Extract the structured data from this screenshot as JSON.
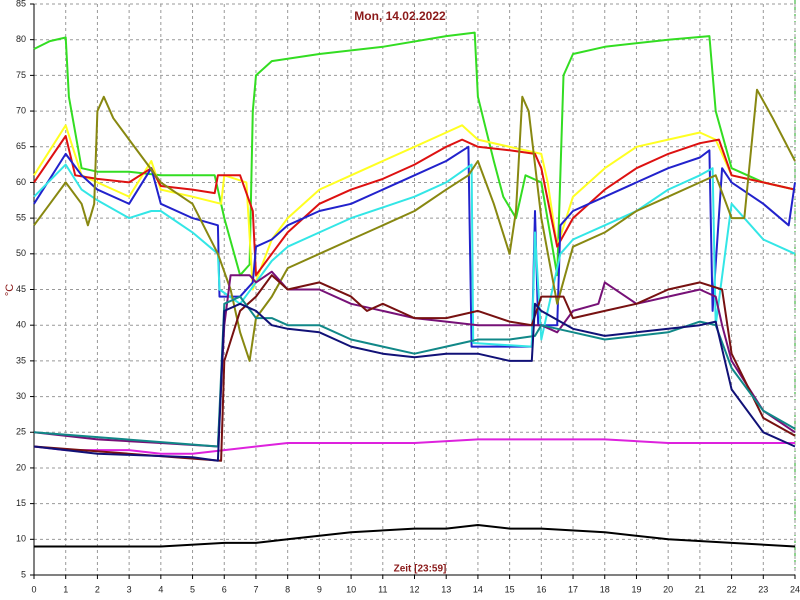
{
  "chart_data": {
    "type": "line",
    "title": "Mon, 14.02.2022",
    "ylabel": "°C",
    "xlabel": "Zeit [23:59]",
    "xlim": [
      0,
      24
    ],
    "xticks": [
      0,
      1,
      2,
      3,
      4,
      5,
      6,
      7,
      8,
      9,
      10,
      11,
      12,
      13,
      14,
      15,
      16,
      17,
      18,
      19,
      20,
      21,
      22,
      23,
      24
    ],
    "ylim": [
      5,
      85
    ],
    "yticks": [
      5,
      10,
      15,
      20,
      25,
      30,
      35,
      40,
      45,
      50,
      55,
      60,
      65,
      70,
      75,
      80,
      85
    ],
    "grid": true,
    "series": [
      {
        "color": "#33dd22",
        "x": [
          0,
          0.5,
          1,
          1.1,
          1.5,
          2,
          3,
          4,
          5,
          5.7,
          6,
          6.5,
          6.8,
          6.9,
          7,
          7.5,
          9,
          11,
          13,
          13.9,
          14,
          14.5,
          14.8,
          15.2,
          15.5,
          16,
          16.5,
          16.7,
          17,
          18,
          20,
          21.3,
          21.5,
          22,
          23,
          24
        ],
        "values": [
          78.7,
          79.8,
          80.3,
          72,
          62,
          61.5,
          61.5,
          61,
          61,
          61,
          55,
          47,
          48.5,
          70,
          75,
          77,
          78,
          79,
          80.5,
          81,
          72,
          63,
          58,
          55,
          61,
          60,
          47,
          75,
          78,
          79,
          80,
          80.5,
          70,
          62,
          60,
          59
        ]
      },
      {
        "color": "#ffff22",
        "x": [
          0,
          1,
          1.5,
          2,
          3,
          3.7,
          4,
          5,
          5.9,
          6,
          6.7,
          6.9,
          7.5,
          8,
          9,
          10,
          11,
          12,
          13,
          13.5,
          14,
          15,
          16,
          16.2,
          16.5,
          17,
          18,
          19,
          20,
          21,
          21.5,
          22,
          23,
          24
        ],
        "values": [
          61,
          68,
          61,
          60,
          58,
          63,
          59,
          58,
          57,
          61,
          60,
          45,
          52,
          55,
          59,
          61,
          63,
          65,
          67,
          68,
          66,
          65,
          64,
          60,
          51,
          58,
          62,
          65,
          66,
          67,
          66,
          61,
          60,
          59
        ]
      },
      {
        "color": "#dd1111",
        "x": [
          0,
          1,
          1.3,
          2,
          3,
          3.7,
          4,
          5,
          5.7,
          5.8,
          6.5,
          6.9,
          7,
          7.5,
          8,
          9,
          10,
          11,
          12,
          13,
          13.5,
          14,
          15,
          15.8,
          16,
          16.5,
          17,
          18,
          19,
          20,
          21,
          21.6,
          22,
          23,
          24
        ],
        "values": [
          60,
          66.5,
          61,
          60.5,
          60,
          62,
          59.5,
          59,
          58.5,
          61,
          61,
          56,
          47,
          50,
          53,
          57,
          59,
          60.5,
          62.5,
          65,
          66,
          65,
          64.5,
          64,
          62,
          51,
          55,
          59,
          62,
          64,
          65.5,
          66,
          61,
          60,
          59
        ]
      },
      {
        "color": "#2222cc",
        "x": [
          0,
          1,
          1.5,
          2,
          3,
          3.7,
          4,
          5,
          5.8,
          5.85,
          6.5,
          6.9,
          7,
          7.5,
          8,
          9,
          10,
          11,
          12,
          13,
          13.7,
          13.8,
          15,
          15.7,
          15.8,
          15.9,
          16.5,
          16.6,
          17,
          18,
          19,
          20,
          21,
          21.3,
          21.4,
          21.7,
          22,
          23,
          23.8,
          24
        ],
        "values": [
          57,
          64,
          61,
          59,
          57,
          62,
          57,
          55,
          54,
          44,
          44,
          46,
          51,
          52,
          54,
          56,
          57,
          59,
          61,
          63,
          65,
          37,
          37,
          37,
          56,
          40,
          40,
          54,
          56,
          58,
          60,
          62,
          63.5,
          64.5,
          42,
          62,
          60,
          57,
          54,
          60
        ]
      },
      {
        "color": "#33e6e6",
        "x": [
          0,
          1,
          1.5,
          2,
          3,
          3.7,
          4,
          5,
          5.8,
          5.85,
          6.5,
          7,
          7.5,
          8,
          9,
          10,
          11,
          12,
          13,
          13.8,
          13.85,
          15.7,
          15.8,
          16,
          16.6,
          17,
          18,
          19,
          20,
          21,
          21.4,
          21.5,
          22,
          23,
          24
        ],
        "values": [
          58,
          62.5,
          59,
          57.5,
          55,
          56,
          56,
          53,
          50,
          45,
          43,
          46,
          49,
          51,
          53,
          55,
          56.5,
          58,
          60,
          62.5,
          37.5,
          37,
          53,
          38,
          50,
          52,
          54,
          56,
          59,
          61,
          62,
          40,
          57,
          52,
          50
        ]
      },
      {
        "color": "#888811",
        "x": [
          0,
          0.5,
          1,
          1.5,
          1.7,
          1.9,
          2,
          2.2,
          2.5,
          3,
          3.5,
          4,
          5,
          5.8,
          6.2,
          6.5,
          6.8,
          7,
          7.5,
          8,
          9,
          10,
          11,
          12,
          13,
          13.7,
          14,
          14.5,
          15,
          15.2,
          15.4,
          15.6,
          16,
          16.5,
          17,
          18,
          19,
          20,
          21,
          21.5,
          22,
          22.4,
          22.8,
          23.3,
          24
        ],
        "values": [
          54,
          57,
          60,
          57,
          54,
          57,
          70,
          72,
          69,
          66,
          63,
          60,
          57,
          50,
          45,
          39,
          35,
          41,
          44,
          48,
          50,
          52,
          54,
          56,
          59,
          61,
          63,
          57,
          50,
          56,
          72,
          70,
          55,
          43,
          51,
          53,
          56,
          58,
          60,
          61,
          55,
          55,
          73,
          69,
          63
        ]
      },
      {
        "color": "#dd22dd",
        "x": [
          0,
          1,
          2,
          3,
          4,
          5,
          6,
          7,
          8,
          10,
          12,
          14,
          16,
          18,
          20,
          22,
          24
        ],
        "values": [
          23,
          22.5,
          22.5,
          22.5,
          22,
          22,
          22.5,
          23,
          23.5,
          23.5,
          23.5,
          24,
          24,
          24,
          23.5,
          23.5,
          23.5
        ]
      },
      {
        "color": "#771177",
        "x": [
          0,
          2,
          4,
          5.8,
          6,
          6.2,
          6.8,
          7,
          7.5,
          8,
          9,
          10,
          11,
          12,
          13,
          14,
          15,
          16,
          16.5,
          17,
          17.8,
          18,
          19,
          20,
          21,
          21.5,
          21.7,
          22,
          23,
          24
        ],
        "values": [
          25,
          24,
          23.5,
          23,
          40,
          47,
          47,
          46,
          47.5,
          45,
          45,
          43,
          42,
          41,
          40.5,
          40,
          40,
          40,
          39,
          42,
          43,
          46,
          43,
          44,
          45,
          44,
          40,
          35,
          28,
          25
        ]
      },
      {
        "color": "#771111",
        "x": [
          0,
          5.9,
          6,
          6.5,
          7,
          7.5,
          8,
          9,
          10,
          10.5,
          11,
          12,
          13,
          14,
          15,
          15.7,
          16,
          16.7,
          17,
          18,
          19,
          20,
          21,
          21.7,
          22,
          23,
          24
        ],
        "values": [
          23,
          21,
          35,
          42,
          44,
          47,
          45,
          46,
          44,
          42,
          43,
          41,
          41,
          42,
          40.5,
          40,
          44,
          44,
          41,
          42,
          43,
          45,
          46,
          45,
          36,
          27,
          24.5
        ]
      },
      {
        "color": "#118888",
        "x": [
          0,
          5.8,
          6,
          6.5,
          7,
          7.5,
          8,
          9,
          10,
          11,
          12,
          13,
          14,
          15,
          15.8,
          16,
          17,
          18,
          19,
          20,
          21,
          21.5,
          22,
          23,
          24
        ],
        "values": [
          25,
          23,
          43,
          44,
          41,
          41,
          40,
          40,
          38,
          37,
          36,
          37,
          38,
          38,
          38.5,
          40,
          39,
          38,
          38.5,
          39,
          40.5,
          40,
          34,
          28,
          25.5
        ]
      },
      {
        "color": "#111177",
        "x": [
          0,
          2,
          5,
          5.8,
          6,
          6.5,
          7,
          7.5,
          8,
          9,
          10,
          11,
          12,
          13,
          14,
          15,
          15.7,
          15.8,
          16,
          17,
          18,
          19,
          20,
          21,
          21.5,
          22,
          23,
          24
        ],
        "values": [
          23,
          22,
          21.5,
          21,
          42,
          43,
          42,
          40,
          39.5,
          39,
          37,
          36,
          35.5,
          36,
          36,
          35,
          35,
          43,
          42,
          39.5,
          38.5,
          39,
          39.5,
          40,
          40.5,
          31,
          25,
          23
        ]
      },
      {
        "color": "#000000",
        "x": [
          0,
          2,
          4,
          6,
          7,
          8,
          9,
          10,
          12,
          13,
          14,
          15,
          16,
          18,
          20,
          22,
          24
        ],
        "values": [
          9,
          9,
          9,
          9.5,
          9.5,
          10,
          10.5,
          11,
          11.5,
          11.5,
          12,
          11.5,
          11.5,
          11,
          10,
          9.5,
          9
        ]
      }
    ]
  }
}
